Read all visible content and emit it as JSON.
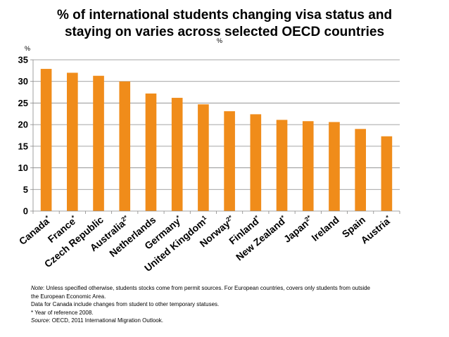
{
  "title_lines": [
    "% of international students changing visa status and",
    "staying on varies across selected OECD countries"
  ],
  "stray_mark": "%",
  "chart_data": {
    "type": "bar",
    "ylabel": "%",
    "ylim": [
      0,
      35
    ],
    "yticks": [
      0,
      5,
      10,
      15,
      20,
      25,
      30,
      35
    ],
    "grid": true,
    "bar_color": "#F08C1A",
    "categories": [
      {
        "name": "Canada",
        "sup": "*"
      },
      {
        "name": "France",
        "sup": "*"
      },
      {
        "name": "Czech Republic",
        "sup": ""
      },
      {
        "name": "Australia",
        "sup": "2*"
      },
      {
        "name": "Netherlands",
        "sup": ""
      },
      {
        "name": "Germany",
        "sup": "*"
      },
      {
        "name": "United Kingdom",
        "sup": "1"
      },
      {
        "name": "Norway",
        "sup": "2*"
      },
      {
        "name": "Finland",
        "sup": "*"
      },
      {
        "name": "New Zealand",
        "sup": "*"
      },
      {
        "name": "Japan",
        "sup": "2*"
      },
      {
        "name": "Ireland",
        "sup": ""
      },
      {
        "name": "Spain",
        "sup": ""
      },
      {
        "name": "Austria",
        "sup": "*"
      }
    ],
    "values": [
      32.9,
      32.0,
      31.3,
      30.0,
      27.2,
      26.2,
      24.7,
      23.1,
      22.4,
      21.1,
      20.8,
      20.6,
      19.0,
      17.3
    ]
  },
  "notes": {
    "note_label": "Note",
    "note_text": ":  Unless specified otherwise, students stocks come from permit sources. For European countries, covers only students from outside",
    "note_text2": "the European Economic Area.",
    "canada_note": " Data for Canada include changes from student to other temporary statuses.",
    "year_note": "* Year of reference 2008.",
    "source_label": "Source",
    "source_text": ":  OECD, 2011 International Migration Outlook",
    "source_end": "."
  }
}
